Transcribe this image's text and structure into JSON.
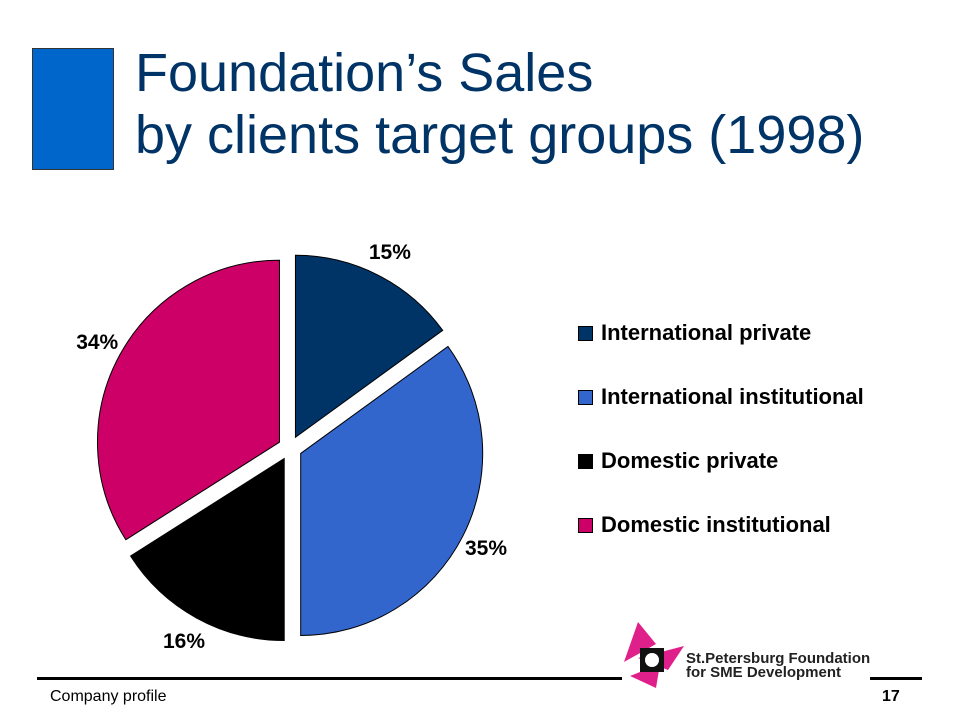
{
  "slide": {
    "title_line1": "Foundation’s Sales",
    "title_line2": "by clients target groups (1998)",
    "footer_left": "Company profile",
    "page_number": "17",
    "logo_line1": "St.Petersburg Foundation",
    "logo_line2": "for SME Development"
  },
  "colors": {
    "accent": "#0066cc",
    "title": "#003366",
    "logo_magenta": "#e0208a"
  },
  "chart_data": {
    "type": "pie",
    "title": "",
    "exploded": true,
    "legend_position": "right",
    "slices": [
      {
        "name": "International private",
        "value": 15,
        "label": "15%",
        "color": "#003366"
      },
      {
        "name": "International institutional",
        "value": 35,
        "label": "35%",
        "color": "#3366cc"
      },
      {
        "name": "Domestic private",
        "value": 16,
        "label": "16%",
        "color": "#000000"
      },
      {
        "name": "Domestic institutional",
        "value": 34,
        "label": "34%",
        "color": "#cc0066"
      }
    ]
  }
}
